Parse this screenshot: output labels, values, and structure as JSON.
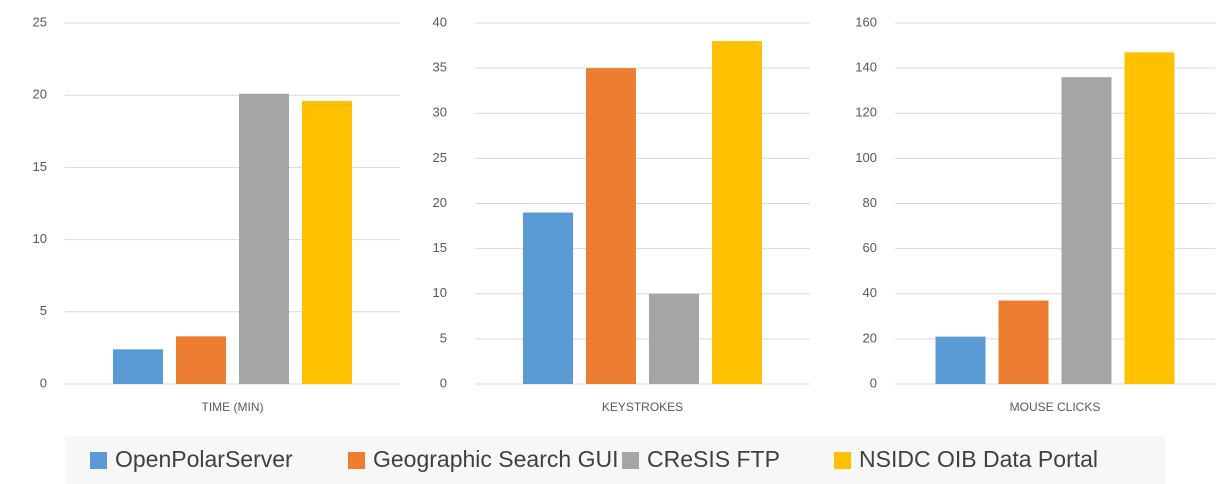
{
  "legend": [
    {
      "name": "OpenPolarServer",
      "color": "#5b9bd5"
    },
    {
      "name": "Geographic Search GUI",
      "color": "#ed7d31"
    },
    {
      "name": "CReSIS FTP",
      "color": "#a5a5a5"
    },
    {
      "name": "NSIDC OIB Data Portal",
      "color": "#ffc000"
    }
  ],
  "chart_data": [
    {
      "type": "bar",
      "categories": [
        "TIME (MIN)"
      ],
      "series": [
        {
          "values": [
            2.4
          ]
        },
        {
          "values": [
            3.3
          ]
        },
        {
          "values": [
            20.1
          ]
        },
        {
          "values": [
            19.6
          ]
        }
      ],
      "ylim": [
        0,
        25
      ],
      "yticks": [
        0,
        5,
        10,
        15,
        20,
        25
      ],
      "grid": true
    },
    {
      "type": "bar",
      "categories": [
        "KEYSTROKES"
      ],
      "series": [
        {
          "values": [
            19
          ]
        },
        {
          "values": [
            35
          ]
        },
        {
          "values": [
            10
          ]
        },
        {
          "values": [
            38
          ]
        }
      ],
      "ylim": [
        0,
        40
      ],
      "yticks": [
        0,
        5,
        10,
        15,
        20,
        25,
        30,
        35,
        40
      ],
      "grid": true
    },
    {
      "type": "bar",
      "categories": [
        "MOUSE CLICKS"
      ],
      "series": [
        {
          "values": [
            21
          ]
        },
        {
          "values": [
            37
          ]
        },
        {
          "values": [
            136
          ]
        },
        {
          "values": [
            147
          ]
        }
      ],
      "ylim": [
        0,
        160
      ],
      "yticks": [
        0,
        20,
        40,
        60,
        80,
        100,
        120,
        140,
        160
      ],
      "grid": true
    }
  ]
}
